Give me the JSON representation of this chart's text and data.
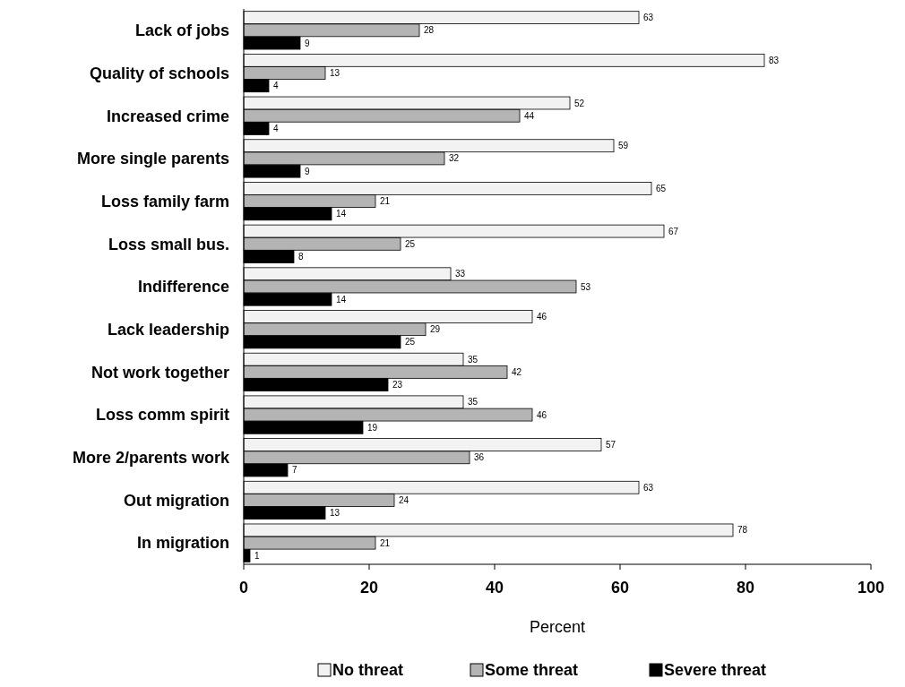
{
  "chart_data": {
    "type": "bar",
    "orientation": "horizontal",
    "xlabel": "Percent",
    "categories": [
      "Lack of jobs",
      "Quality of schools",
      "Increased crime",
      "More single parents",
      "Loss family farm",
      "Loss small bus.",
      "Indifference",
      "Lack leadership",
      "Not work together",
      "Loss comm spirit",
      "More 2/parents work",
      "Out migration",
      "In migration"
    ],
    "series": [
      {
        "name": "No threat",
        "color": "#f2f2f2",
        "values": [
          63,
          83,
          52,
          59,
          65,
          67,
          33,
          46,
          35,
          35,
          57,
          63,
          78
        ]
      },
      {
        "name": "Some threat",
        "color": "#b4b4b4",
        "values": [
          28,
          13,
          44,
          32,
          21,
          25,
          53,
          29,
          42,
          46,
          36,
          24,
          21
        ]
      },
      {
        "name": "Severe threat",
        "color": "#000000",
        "values": [
          9,
          4,
          4,
          9,
          14,
          8,
          14,
          25,
          23,
          19,
          7,
          13,
          1
        ]
      }
    ],
    "xlim": [
      0,
      100
    ],
    "xticks": [
      0,
      20,
      40,
      60,
      80,
      100
    ],
    "data_labels": true,
    "legend": "bottom",
    "grid": false
  }
}
